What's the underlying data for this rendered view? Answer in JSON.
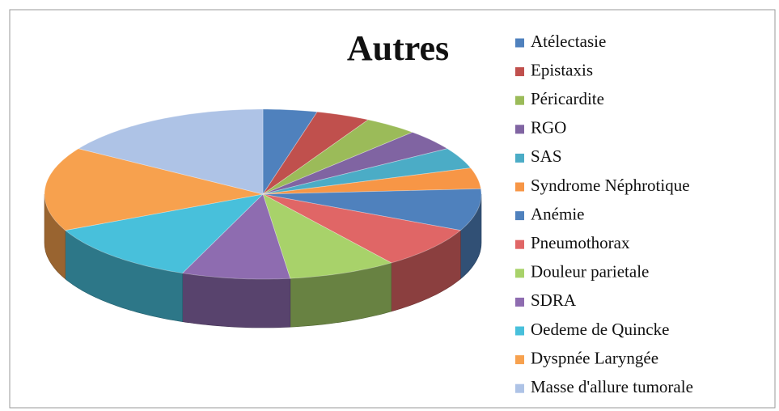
{
  "chart_data": {
    "type": "pie3d",
    "title": "Autres",
    "categories": [
      "Atélectasie",
      "Epistaxis",
      "Péricardite",
      "RGO",
      "SAS",
      "Syndrome Néphrotique",
      "Anémie",
      "Pneumothorax",
      "Douleur parietale",
      "SDRA",
      "Oedeme de Quincke",
      "Dyspnée Laryngée",
      "Masse d'allure tumorale"
    ],
    "values": [
      1,
      1,
      1,
      1,
      1,
      1,
      2,
      2,
      2,
      2,
      3,
      4,
      4
    ],
    "colors": [
      "#4f81bd",
      "#c0504d",
      "#9bbb59",
      "#8064a2",
      "#4bacc6",
      "#f79646",
      "#4f81bd",
      "#e06666",
      "#a8d26a",
      "#8e6cb0",
      "#48c0db",
      "#f7a14e",
      "#aec3e6"
    ],
    "legend": "right"
  }
}
